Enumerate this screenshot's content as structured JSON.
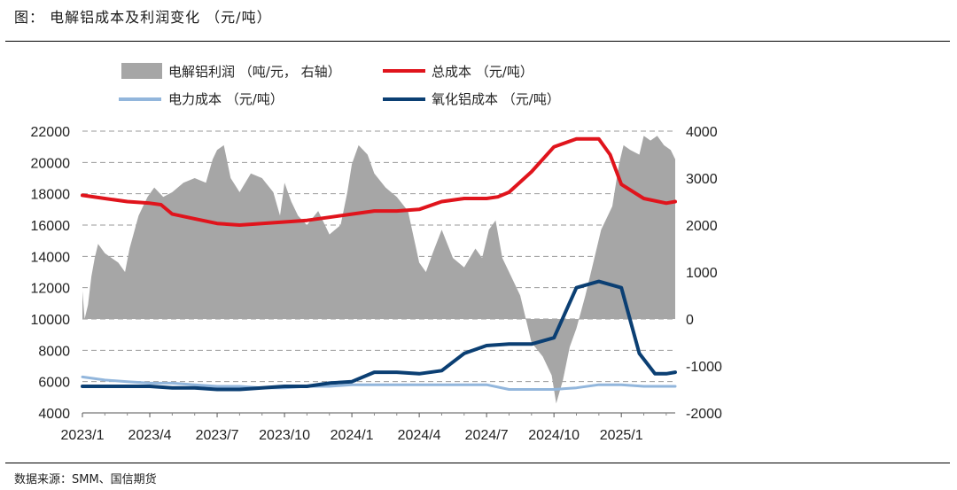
{
  "header": {
    "title": "图： 电解铝成本及利润变化 （元/吨）"
  },
  "footer": {
    "source": "数据来源：SMM、国信期货"
  },
  "colors": {
    "profit": "#a6a6a6",
    "total_cost": "#e0141c",
    "power_cost": "#92b6dc",
    "alumina_cost": "#0b3f73",
    "grid": "#9a9a9a"
  },
  "chart_data": {
    "type": "line",
    "title": "电解铝成本及利润变化 （元/吨）",
    "x_tick_labels": [
      "2023/1",
      "2023/4",
      "2023/7",
      "2023/10",
      "2024/1",
      "2024/4",
      "2024/7",
      "2024/10",
      "2025/1"
    ],
    "x_range": [
      "2023/1",
      "2025/3"
    ],
    "left_axis": {
      "ylim": [
        4000,
        22000
      ],
      "ticks": [
        4000,
        6000,
        8000,
        10000,
        12000,
        14000,
        16000,
        18000,
        20000,
        22000
      ]
    },
    "right_axis": {
      "ylim": [
        -2000,
        4000
      ],
      "ticks": [
        -2000,
        -1000,
        0,
        1000,
        2000,
        3000,
        4000
      ]
    },
    "legend": [
      "电解铝利润 （吨/元， 右轴）",
      "总成本 （元/吨）",
      "电力成本 （元/吨）",
      "氧化铝成本 （元/吨）"
    ],
    "legend_position": "top",
    "series": [
      {
        "name": "电解铝利润",
        "axis": "right",
        "style": "area",
        "x": [
          0,
          0.1,
          0.25,
          0.4,
          0.55,
          0.7,
          1.0,
          1.3,
          1.6,
          1.9,
          2.1,
          2.5,
          2.9,
          3.2,
          3.6,
          4.0,
          4.5,
          5.0,
          5.5,
          5.8,
          6.0,
          6.3,
          6.6,
          7.0,
          7.5,
          8.0,
          8.5,
          8.8,
          9.0,
          9.3,
          9.6,
          10.0,
          10.5,
          11.0,
          11.5,
          11.8,
          12.0,
          12.3,
          12.7,
          13.0,
          13.5,
          14.0,
          14.5,
          15.0,
          15.3,
          15.6,
          16.0,
          16.5,
          17.0,
          17.5,
          17.8,
          18.1,
          18.4,
          18.7,
          19.0,
          19.5,
          20.0,
          20.5,
          20.9,
          21.1,
          21.4,
          21.7,
          22.0,
          22.4,
          22.8,
          23.1,
          23.4,
          23.6,
          23.9,
          24.1,
          24.4,
          24.8,
          25.0,
          25.3,
          25.6,
          25.9,
          26.2,
          26.4
        ],
        "values": [
          600,
          0,
          300,
          900,
          1300,
          1600,
          1400,
          1300,
          1200,
          1000,
          1500,
          2200,
          2600,
          2800,
          2600,
          2700,
          2900,
          3000,
          2900,
          3400,
          3600,
          3700,
          3000,
          2700,
          3100,
          3000,
          2700,
          2200,
          2900,
          2500,
          2200,
          2000,
          2300,
          1800,
          2000,
          2700,
          3300,
          3700,
          3500,
          3100,
          2800,
          2600,
          2300,
          1200,
          1000,
          1400,
          1900,
          1300,
          1100,
          1500,
          1300,
          1900,
          2100,
          1300,
          1000,
          500,
          -500,
          -800,
          -1200,
          -1800,
          -1300,
          -600,
          -200,
          500,
          1300,
          1900,
          2200,
          2400,
          3300,
          3700,
          3600,
          3500,
          3900,
          3800,
          3900,
          3700,
          3600,
          3400
        ]
      },
      {
        "name": "总成本",
        "axis": "left",
        "style": "line",
        "x": [
          0,
          1,
          2,
          3,
          3.5,
          4,
          5,
          6,
          7,
          8,
          9,
          10,
          11,
          12,
          13,
          14,
          15,
          16,
          17,
          18,
          18.5,
          19,
          20,
          21,
          22,
          23,
          23.5,
          24,
          25,
          26,
          26.4
        ],
        "values": [
          17900,
          17700,
          17500,
          17400,
          17300,
          16700,
          16400,
          16100,
          16000,
          16100,
          16200,
          16300,
          16500,
          16700,
          16900,
          16900,
          17000,
          17500,
          17700,
          17700,
          17800,
          18100,
          19400,
          21000,
          21500,
          21500,
          20500,
          18600,
          17700,
          17400,
          17500
        ]
      },
      {
        "name": "电力成本",
        "axis": "left",
        "style": "line",
        "x": [
          0,
          1,
          2,
          3,
          4,
          5,
          6,
          7,
          8,
          9,
          10,
          11,
          12,
          13,
          14,
          15,
          16,
          17,
          18,
          19,
          20,
          21,
          22,
          23,
          24,
          25,
          26,
          26.4
        ],
        "values": [
          6300,
          6100,
          6000,
          5900,
          5900,
          5800,
          5700,
          5700,
          5600,
          5600,
          5700,
          5700,
          5800,
          5800,
          5800,
          5800,
          5800,
          5800,
          5800,
          5500,
          5500,
          5500,
          5600,
          5800,
          5800,
          5700,
          5700,
          5700
        ]
      },
      {
        "name": "氧化铝成本",
        "axis": "left",
        "style": "line",
        "x": [
          0,
          1,
          2,
          3,
          4,
          5,
          6,
          7,
          8,
          9,
          10,
          11,
          12,
          13,
          14,
          15,
          16,
          17,
          18,
          19,
          20,
          21,
          22,
          23,
          24,
          24.8,
          25.5,
          26,
          26.4
        ],
        "values": [
          5700,
          5700,
          5700,
          5700,
          5600,
          5600,
          5500,
          5500,
          5600,
          5700,
          5700,
          5900,
          6000,
          6600,
          6600,
          6500,
          6700,
          7800,
          8300,
          8400,
          8400,
          8800,
          12000,
          12400,
          12000,
          7800,
          6500,
          6500,
          6600
        ]
      }
    ]
  }
}
